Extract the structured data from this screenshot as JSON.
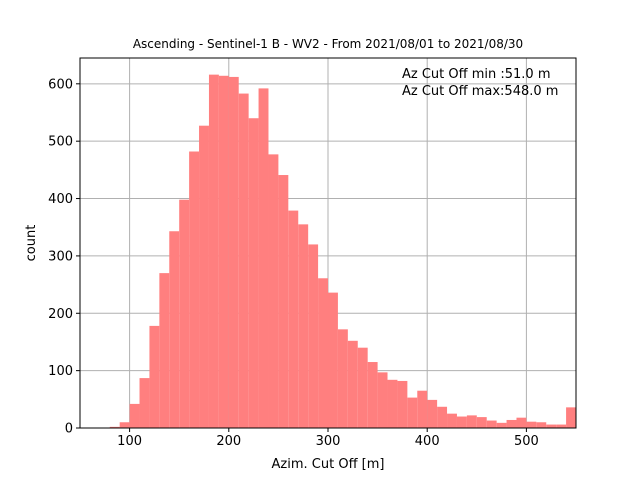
{
  "chart_data": {
    "type": "bar",
    "title": "Ascending - Sentinel-1 B - WV2 - From 2021/08/01 to 2021/08/30",
    "xlabel": "Azim. Cut Off [m]",
    "ylabel": "count",
    "xlim": [
      50,
      550
    ],
    "ylim": [
      0,
      645
    ],
    "xticks": [
      100,
      200,
      300,
      400,
      500
    ],
    "yticks": [
      0,
      100,
      200,
      300,
      400,
      500,
      600
    ],
    "grid": true,
    "bar_color": "#ff7f7f",
    "bin_width": 10,
    "bin_starts": [
      50,
      60,
      70,
      80,
      90,
      100,
      110,
      120,
      130,
      140,
      150,
      160,
      170,
      180,
      190,
      200,
      210,
      220,
      230,
      240,
      250,
      260,
      270,
      280,
      290,
      300,
      310,
      320,
      330,
      340,
      350,
      360,
      370,
      380,
      390,
      400,
      410,
      420,
      430,
      440,
      450,
      460,
      470,
      480,
      490,
      500,
      510,
      520,
      530,
      540
    ],
    "values": [
      0,
      0,
      0,
      2,
      10,
      42,
      87,
      178,
      270,
      343,
      398,
      482,
      527,
      616,
      614,
      612,
      583,
      540,
      592,
      477,
      441,
      379,
      355,
      320,
      261,
      236,
      172,
      152,
      140,
      115,
      97,
      84,
      82,
      53,
      65,
      49,
      37,
      25,
      20,
      22,
      19,
      13,
      9,
      14,
      18,
      11,
      10,
      6,
      6,
      36
    ],
    "annotations": [
      "Az Cut Off min :51.0 m",
      "Az Cut Off max:548.0 m"
    ]
  }
}
